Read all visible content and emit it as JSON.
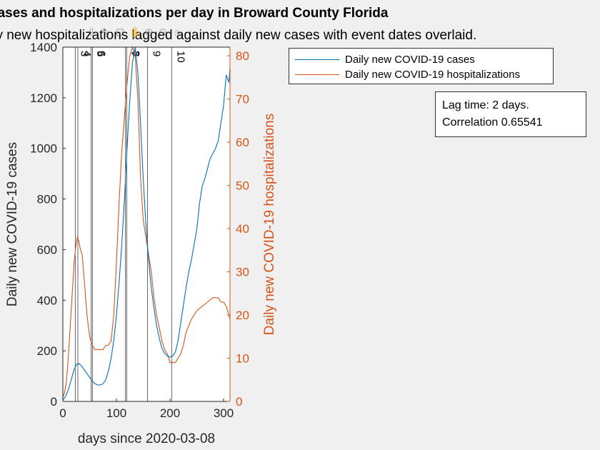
{
  "chart_data": {
    "type": "line",
    "title": "cases and hospitalizations per day in Broward County Florida",
    "subtitle": "ily new hospitalizations lagged against daily new cases with event dates overlaid.",
    "xlabel": "days since 2020-03-08",
    "ylabel_left": "Daily new COVID-19 cases",
    "ylabel_right": "Daily new COVID-19 hospitalizations",
    "xlim": [
      0,
      312
    ],
    "ylim_left": [
      0,
      1400
    ],
    "ylim_right": [
      0,
      82
    ],
    "xticks": [
      0,
      100,
      200,
      300
    ],
    "yticks_left": [
      0,
      200,
      400,
      600,
      800,
      1000,
      1200,
      1400
    ],
    "yticks_right": [
      0,
      10,
      20,
      30,
      40,
      50,
      60,
      70,
      80
    ],
    "series": [
      {
        "name": "Daily new COVID-19 cases",
        "axis": "left",
        "color": "#0072BD",
        "x": [
          0,
          5,
          10,
          15,
          20,
          25,
          30,
          35,
          40,
          45,
          50,
          55,
          60,
          65,
          70,
          75,
          80,
          85,
          90,
          95,
          100,
          105,
          110,
          115,
          120,
          125,
          130,
          135,
          140,
          145,
          150,
          155,
          160,
          165,
          170,
          175,
          180,
          185,
          190,
          195,
          200,
          205,
          210,
          215,
          220,
          225,
          230,
          235,
          240,
          245,
          250,
          255,
          260,
          265,
          270,
          275,
          280,
          285,
          290,
          295,
          300,
          305,
          310,
          312
        ],
        "y": [
          5,
          20,
          45,
          80,
          120,
          145,
          150,
          140,
          125,
          110,
          95,
          80,
          70,
          65,
          65,
          70,
          85,
          120,
          170,
          240,
          340,
          470,
          620,
          800,
          1010,
          1190,
          1340,
          1400,
          1300,
          1100,
          880,
          700,
          560,
          450,
          370,
          300,
          250,
          210,
          190,
          180,
          175,
          180,
          195,
          240,
          310,
          380,
          450,
          510,
          560,
          620,
          680,
          780,
          850,
          880,
          920,
          960,
          980,
          1000,
          1030,
          1100,
          1170,
          1290,
          1260,
          1320
        ]
      },
      {
        "name": "Daily new COVID-19 hospitalizations",
        "axis": "right",
        "color": "#D95319",
        "x": [
          0,
          3,
          6,
          9,
          12,
          15,
          18,
          21,
          24,
          27,
          30,
          33,
          36,
          40,
          45,
          50,
          55,
          60,
          65,
          70,
          75,
          80,
          85,
          90,
          95,
          100,
          105,
          110,
          115,
          120,
          125,
          130,
          135,
          140,
          145,
          150,
          155,
          160,
          165,
          170,
          175,
          180,
          185,
          190,
          195,
          200,
          205,
          210,
          215,
          220,
          225,
          230,
          240,
          250,
          260,
          270,
          280,
          290,
          295,
          300,
          305,
          310,
          312
        ],
        "y": [
          1,
          2,
          4,
          8,
          14,
          20,
          26,
          32,
          36,
          38,
          37,
          35,
          34,
          28,
          20,
          15,
          13,
          12,
          12,
          12,
          12,
          13,
          13,
          14,
          20,
          32,
          46,
          58,
          66,
          74,
          80,
          82,
          80,
          70,
          52,
          42,
          38,
          34,
          30,
          24,
          20,
          17,
          14,
          12,
          11,
          9,
          9,
          9,
          10,
          11,
          13,
          16,
          19,
          21,
          22,
          23,
          24,
          24,
          23,
          23,
          22,
          20,
          19
        ]
      }
    ],
    "event_lines": [
      {
        "x": 23,
        "label": "3"
      },
      {
        "x": 28,
        "label": "4"
      },
      {
        "x": 53,
        "label": "5"
      },
      {
        "x": 55,
        "label": "6"
      },
      {
        "x": 117,
        "label": "7"
      },
      {
        "x": 119,
        "label": "8"
      },
      {
        "x": 158,
        "label": "9"
      },
      {
        "x": 203,
        "label": "10"
      }
    ],
    "annotation": [
      "Lag time: 2 days.",
      "Correlation 0.65541"
    ],
    "legend_position": "top-right, outside axes"
  }
}
